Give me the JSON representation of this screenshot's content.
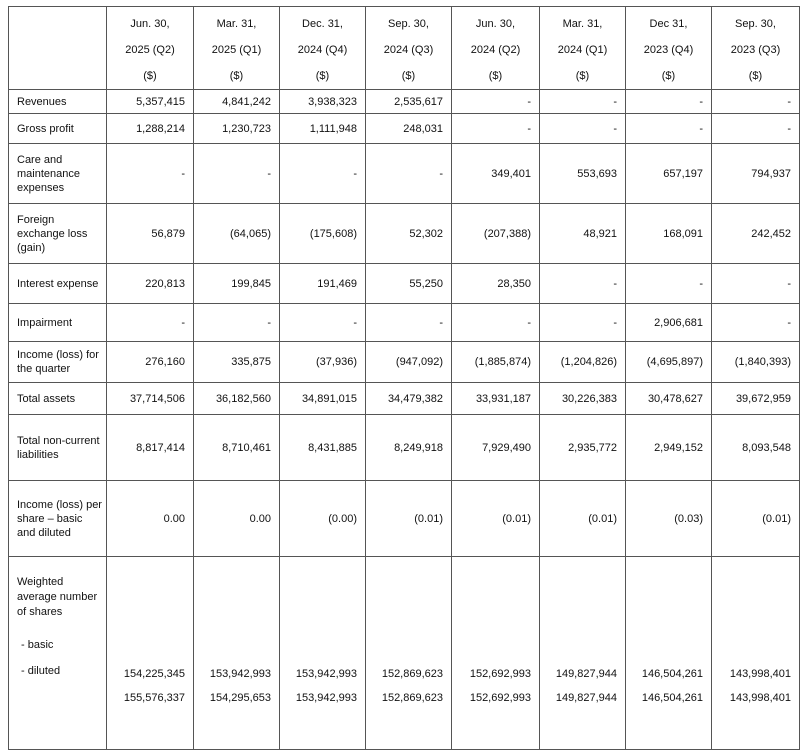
{
  "table": {
    "header": [
      [
        "Jun. 30,",
        "2025 (Q2)",
        "($)"
      ],
      [
        "Mar. 31,",
        "2025 (Q1)",
        "($)"
      ],
      [
        "Dec. 31,",
        "2024 (Q4)",
        "($)"
      ],
      [
        "Sep. 30,",
        "2024 (Q3)",
        "($)"
      ],
      [
        "Jun. 30,",
        "2024 (Q2)",
        "($)"
      ],
      [
        "Mar. 31,",
        "2024 (Q1)",
        "($)"
      ],
      [
        "Dec 31,",
        "2023 (Q4)",
        "($)"
      ],
      [
        "Sep. 30,",
        "2023 (Q3)",
        "($)"
      ]
    ],
    "rows": [
      {
        "label": "Revenues",
        "values": [
          "5,357,415",
          "4,841,242",
          "3,938,323",
          "2,535,617",
          "-",
          "-",
          "-",
          "-"
        ]
      },
      {
        "label": "Gross profit",
        "values": [
          "1,288,214",
          "1,230,723",
          "1,111,948",
          "248,031",
          "-",
          "-",
          "-",
          "-"
        ]
      },
      {
        "label": "Care and maintenance expenses",
        "values": [
          "-",
          "-",
          "-",
          "-",
          "349,401",
          "553,693",
          "657,197",
          "794,937"
        ]
      },
      {
        "label": "Foreign exchange loss (gain)",
        "values": [
          "56,879",
          "(64,065)",
          "(175,608)",
          "52,302",
          "(207,388)",
          "48,921",
          "168,091",
          "242,452"
        ]
      },
      {
        "label": "Interest expense",
        "values": [
          "220,813",
          "199,845",
          "191,469",
          "55,250",
          "28,350",
          "-",
          "-",
          "-"
        ]
      },
      {
        "label": "Impairment",
        "values": [
          "-",
          "-",
          "-",
          "-",
          "-",
          "-",
          "2,906,681",
          "-"
        ]
      },
      {
        "label": "Income (loss) for the quarter",
        "values": [
          "276,160",
          "335,875",
          "(37,936)",
          "(947,092)",
          "(1,885,874)",
          "(1,204,826)",
          "(4,695,897)",
          "(1,840,393)"
        ]
      },
      {
        "label": "Total assets",
        "values": [
          "37,714,506",
          "36,182,560",
          "34,891,015",
          "34,479,382",
          "33,931,187",
          "30,226,383",
          "30,478,627",
          "39,672,959"
        ]
      },
      {
        "label": "Total non-current liabilities",
        "values": [
          "8,817,414",
          "8,710,461",
          "8,431,885",
          "8,249,918",
          "7,929,490",
          "2,935,772",
          "2,949,152",
          "8,093,548"
        ]
      },
      {
        "label": "Income (loss) per share – basic and diluted",
        "values": [
          "0.00",
          "0.00",
          "(0.00)",
          "(0.01)",
          "(0.01)",
          "(0.01)",
          "(0.03)",
          "(0.01)"
        ]
      }
    ],
    "weighted": {
      "label": "Weighted average number of shares",
      "basic_label": "- basic",
      "diluted_label": "- diluted",
      "basic": [
        "154,225,345",
        "153,942,993",
        "153,942,993",
        "152,869,623",
        "152,692,993",
        "149,827,944",
        "146,504,261",
        "143,998,401"
      ],
      "diluted": [
        "155,576,337",
        "154,295,653",
        "153,942,993",
        "152,869,623",
        "152,692,993",
        "149,827,944",
        "146,504,261",
        "143,998,401"
      ]
    }
  }
}
